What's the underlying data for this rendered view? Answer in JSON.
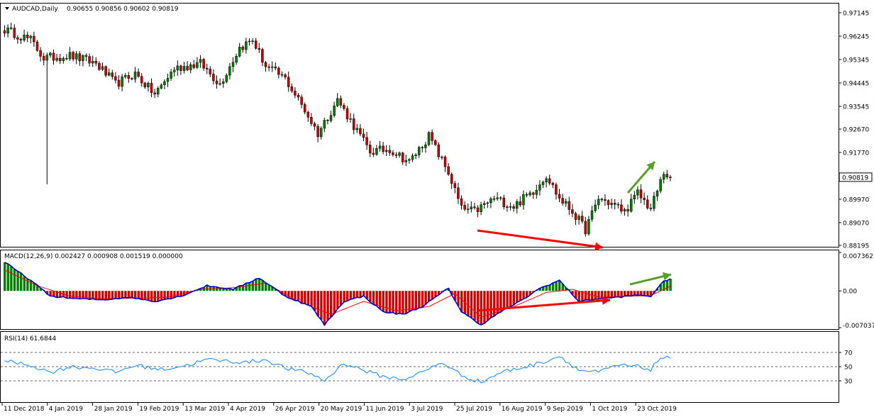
{
  "main": {
    "symbol_label": "AUDCAD,Daily",
    "ohlc_label": "0.90655 0.90856 0.90602 0.90819",
    "price_ticks": [
      "0.97145",
      "0.96245",
      "0.95345",
      "0.94445",
      "0.93545",
      "0.92670",
      "0.91770",
      "0.90819",
      "0.89970",
      "0.89070",
      "0.88195"
    ],
    "current_price": "0.90819"
  },
  "macd": {
    "label": "MACD(12,26,9) 0.002427 0.000908 0.001519 0.000000",
    "ticks": [
      "0.007362",
      "0.00",
      "-0.007037"
    ]
  },
  "rsi": {
    "label": "RSI(14) 61.6844",
    "ticks": [
      "70",
      "50",
      "30"
    ]
  },
  "date_ticks": [
    "11 Dec 2018",
    "4 Jan 2019",
    "28 Jan 2019",
    "19 Feb 2019",
    "13 Mar 2019",
    "4 Apr 2019",
    "26 Apr 2019",
    "20 May 2019",
    "11 Jun 2019",
    "3 Jul 2019",
    "25 Jul 2019",
    "16 Aug 2019",
    "9 Sep 2019",
    "1 Oct 2019",
    "23 Oct 2019"
  ],
  "colors": {
    "bull": "#008000",
    "bear": "#d00000",
    "macd_line": "#0000d0",
    "signal_line": "#ff0000",
    "rsi_line": "#1e90ff",
    "red_arrow": "#ff0000",
    "green_arrow": "#5a9e2a"
  },
  "chart_data": [
    {
      "type": "candlestick",
      "ylim": [
        0.88195,
        0.97145
      ],
      "close_keypoints": [
        [
          0,
          0.965
        ],
        [
          8,
          0.961
        ],
        [
          12,
          0.954
        ],
        [
          20,
          0.955
        ],
        [
          28,
          0.952
        ],
        [
          34,
          0.944
        ],
        [
          40,
          0.948
        ],
        [
          46,
          0.94
        ],
        [
          52,
          0.95
        ],
        [
          60,
          0.952
        ],
        [
          66,
          0.944
        ],
        [
          72,
          0.958
        ],
        [
          76,
          0.961
        ],
        [
          80,
          0.951
        ],
        [
          86,
          0.946
        ],
        [
          92,
          0.934
        ],
        [
          96,
          0.925
        ],
        [
          102,
          0.938
        ],
        [
          106,
          0.93
        ],
        [
          112,
          0.918
        ],
        [
          118,
          0.919
        ],
        [
          124,
          0.914
        ],
        [
          130,
          0.924
        ],
        [
          136,
          0.91
        ],
        [
          140,
          0.896
        ],
        [
          144,
          0.895
        ],
        [
          150,
          0.9
        ],
        [
          156,
          0.897
        ],
        [
          162,
          0.903
        ],
        [
          166,
          0.909
        ],
        [
          170,
          0.9
        ],
        [
          174,
          0.895
        ],
        [
          178,
          0.888
        ],
        [
          182,
          0.9
        ],
        [
          186,
          0.898
        ],
        [
          190,
          0.895
        ],
        [
          194,
          0.902
        ],
        [
          198,
          0.896
        ],
        [
          200,
          0.903
        ],
        [
          202,
          0.91
        ],
        [
          204,
          0.9082
        ]
      ]
    },
    {
      "type": "line",
      "name": "MACD(12,26,9)",
      "ylim": [
        -0.007037,
        0.007362
      ],
      "macd_keypoints": [
        [
          0,
          0.0055
        ],
        [
          8,
          0.002
        ],
        [
          14,
          -0.001
        ],
        [
          22,
          -0.0015
        ],
        [
          30,
          -0.0017
        ],
        [
          38,
          -0.0012
        ],
        [
          46,
          -0.002
        ],
        [
          54,
          -0.001
        ],
        [
          62,
          0.001
        ],
        [
          70,
          0.0003
        ],
        [
          78,
          0.0025
        ],
        [
          86,
          -0.001
        ],
        [
          94,
          -0.003
        ],
        [
          98,
          -0.0065
        ],
        [
          104,
          -0.002
        ],
        [
          110,
          -0.001
        ],
        [
          116,
          -0.004
        ],
        [
          122,
          -0.0045
        ],
        [
          128,
          -0.003
        ],
        [
          136,
          0.0005
        ],
        [
          140,
          -0.004
        ],
        [
          146,
          -0.0065
        ],
        [
          152,
          -0.004
        ],
        [
          158,
          -0.002
        ],
        [
          164,
          0.0005
        ],
        [
          170,
          0.002
        ],
        [
          176,
          -0.002
        ],
        [
          182,
          -0.0015
        ],
        [
          188,
          -0.0012
        ],
        [
          194,
          -0.0008
        ],
        [
          198,
          -0.001
        ],
        [
          202,
          0.0018
        ],
        [
          204,
          0.0024
        ]
      ],
      "signal_keypoints": [
        [
          0,
          0.004
        ],
        [
          10,
          0.001
        ],
        [
          20,
          -0.001
        ],
        [
          30,
          -0.0015
        ],
        [
          40,
          -0.0014
        ],
        [
          50,
          -0.0012
        ],
        [
          60,
          0.0003
        ],
        [
          70,
          0.0006
        ],
        [
          80,
          0.0015
        ],
        [
          90,
          -0.002
        ],
        [
          100,
          -0.0045
        ],
        [
          110,
          -0.002
        ],
        [
          120,
          -0.0038
        ],
        [
          130,
          -0.003
        ],
        [
          138,
          -0.0005
        ],
        [
          146,
          -0.005
        ],
        [
          156,
          -0.003
        ],
        [
          166,
          -0.0003
        ],
        [
          174,
          0.0003
        ],
        [
          182,
          -0.0012
        ],
        [
          192,
          -0.001
        ],
        [
          198,
          -0.0009
        ],
        [
          204,
          0.0009
        ]
      ]
    },
    {
      "type": "line",
      "name": "RSI(14)",
      "ylim": [
        0,
        100
      ],
      "levels": [
        70,
        50,
        30
      ],
      "rsi_keypoints": [
        [
          0,
          58
        ],
        [
          8,
          52
        ],
        [
          14,
          42
        ],
        [
          20,
          50
        ],
        [
          28,
          48
        ],
        [
          34,
          42
        ],
        [
          40,
          52
        ],
        [
          48,
          46
        ],
        [
          56,
          52
        ],
        [
          62,
          60
        ],
        [
          68,
          58
        ],
        [
          74,
          56
        ],
        [
          80,
          60
        ],
        [
          86,
          48
        ],
        [
          94,
          40
        ],
        [
          98,
          30
        ],
        [
          104,
          55
        ],
        [
          110,
          45
        ],
        [
          116,
          36
        ],
        [
          122,
          32
        ],
        [
          128,
          42
        ],
        [
          134,
          56
        ],
        [
          140,
          38
        ],
        [
          146,
          28
        ],
        [
          152,
          42
        ],
        [
          158,
          48
        ],
        [
          164,
          55
        ],
        [
          170,
          65
        ],
        [
          176,
          45
        ],
        [
          182,
          42
        ],
        [
          188,
          52
        ],
        [
          194,
          50
        ],
        [
          198,
          46
        ],
        [
          201,
          63
        ],
        [
          204,
          61.7
        ]
      ]
    }
  ]
}
